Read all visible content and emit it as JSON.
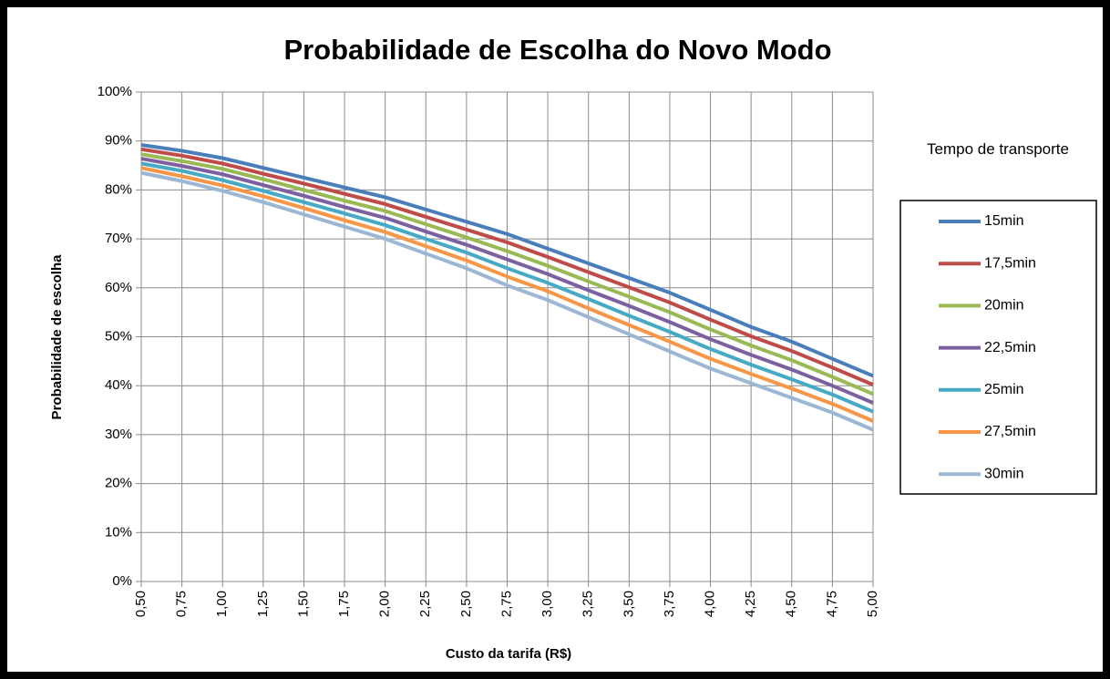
{
  "chart_data": {
    "type": "line",
    "title": "Probabilidade de Escolha do Novo Modo",
    "x_label": "Custo da tarifa (R$)",
    "y_label": "Probabilidade de escolha",
    "legend_title": "Tempo de transporte",
    "legend": "right",
    "grid": true,
    "categories": [
      "0,50",
      "0,75",
      "1,00",
      "1,25",
      "1,50",
      "1,75",
      "2,00",
      "2,25",
      "2,50",
      "2,75",
      "3,00",
      "3,25",
      "3,50",
      "3,75",
      "4,00",
      "4,25",
      "4,50",
      "4,75",
      "5,00"
    ],
    "ylim": [
      0,
      100
    ],
    "yticks": [
      {
        "value": 0,
        "label": "0%"
      },
      {
        "value": 10,
        "label": "10%"
      },
      {
        "value": 20,
        "label": "20%"
      },
      {
        "value": 30,
        "label": "30%"
      },
      {
        "value": 40,
        "label": "40%"
      },
      {
        "value": 50,
        "label": "50%"
      },
      {
        "value": 60,
        "label": "60%"
      },
      {
        "value": 70,
        "label": "70%"
      },
      {
        "value": 80,
        "label": "80%"
      },
      {
        "value": 90,
        "label": "90%"
      },
      {
        "value": 100,
        "label": "100%"
      }
    ],
    "series": [
      {
        "name": "15min",
        "color": "#4a7ebb",
        "values": [
          89.2,
          88,
          86.5,
          84.5,
          82.5,
          80.5,
          78.5,
          76,
          73.5,
          71,
          68,
          65,
          62,
          59,
          55.5,
          52,
          49,
          45.5,
          42
        ]
      },
      {
        "name": "17,5min",
        "color": "#be4b48",
        "values": [
          88.3,
          87.0,
          85.4,
          83.3,
          81.3,
          79.2,
          77.1,
          74.5,
          71.9,
          69.3,
          66.3,
          63.2,
          60.1,
          57,
          53.5,
          50.1,
          47.1,
          43.7,
          40.2
        ]
      },
      {
        "name": "20min",
        "color": "#98b954",
        "values": [
          87.3,
          85.9,
          84.3,
          82.2,
          80.0,
          77.8,
          75.7,
          73,
          70.3,
          67.5,
          64.5,
          61.3,
          58.2,
          55,
          51.5,
          48.2,
          45.2,
          41.8,
          38.3
        ]
      },
      {
        "name": "22,5min",
        "color": "#7d60a0",
        "values": [
          86.4,
          84.9,
          83.2,
          81.0,
          78.8,
          76.5,
          74.3,
          71.5,
          68.8,
          65.8,
          62.8,
          59.5,
          56.3,
          53,
          49.5,
          46.3,
          43.3,
          40,
          36.5
        ]
      },
      {
        "name": "25min",
        "color": "#46aac5",
        "values": [
          85.4,
          83.9,
          82.0,
          79.8,
          77.5,
          75.2,
          72.8,
          70,
          67.2,
          64,
          61,
          57.7,
          54.3,
          51,
          47.5,
          44.3,
          41.3,
          38.2,
          34.7
        ]
      },
      {
        "name": "27,5min",
        "color": "#f79646",
        "values": [
          84.5,
          82.8,
          80.9,
          78.7,
          76.3,
          73.8,
          71.4,
          68.5,
          65.6,
          62.3,
          59.3,
          55.8,
          52.4,
          49,
          45.5,
          42.4,
          39.4,
          36.3,
          32.8
        ]
      },
      {
        "name": "30min",
        "color": "#9bb7d4",
        "values": [
          83.5,
          81.8,
          79.8,
          77.5,
          75,
          72.5,
          70,
          67,
          64,
          60.5,
          57.5,
          54,
          50.5,
          47,
          43.5,
          40.5,
          37.5,
          34.5,
          31
        ]
      }
    ]
  }
}
